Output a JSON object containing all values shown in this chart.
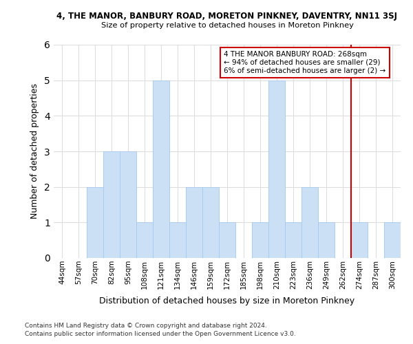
{
  "title": "4, THE MANOR, BANBURY ROAD, MORETON PINKNEY, DAVENTRY, NN11 3SJ",
  "subtitle": "Size of property relative to detached houses in Moreton Pinkney",
  "xlabel": "Distribution of detached houses by size in Moreton Pinkney",
  "ylabel": "Number of detached properties",
  "bins": [
    "44sqm",
    "57sqm",
    "70sqm",
    "82sqm",
    "95sqm",
    "108sqm",
    "121sqm",
    "134sqm",
    "146sqm",
    "159sqm",
    "172sqm",
    "185sqm",
    "198sqm",
    "210sqm",
    "223sqm",
    "236sqm",
    "249sqm",
    "262sqm",
    "274sqm",
    "287sqm",
    "300sqm"
  ],
  "values": [
    0,
    0,
    2,
    3,
    3,
    1,
    5,
    1,
    2,
    2,
    1,
    0,
    1,
    5,
    1,
    2,
    1,
    0,
    1,
    0,
    1
  ],
  "bar_color": "#cce0f5",
  "bar_edge_color": "#aaccee",
  "property_line_color": "#cc0000",
  "annotation_text": "4 THE MANOR BANBURY ROAD: 268sqm\n← 94% of detached houses are smaller (29)\n6% of semi-detached houses are larger (2) →",
  "annotation_box_color": "#ffffff",
  "annotation_box_edge_color": "#cc0000",
  "ylim": [
    0,
    6
  ],
  "yticks": [
    0,
    1,
    2,
    3,
    4,
    5,
    6
  ],
  "footer1": "Contains HM Land Registry data © Crown copyright and database right 2024.",
  "footer2": "Contains public sector information licensed under the Open Government Licence v3.0.",
  "bg_color": "#ffffff",
  "grid_color": "#dddddd"
}
